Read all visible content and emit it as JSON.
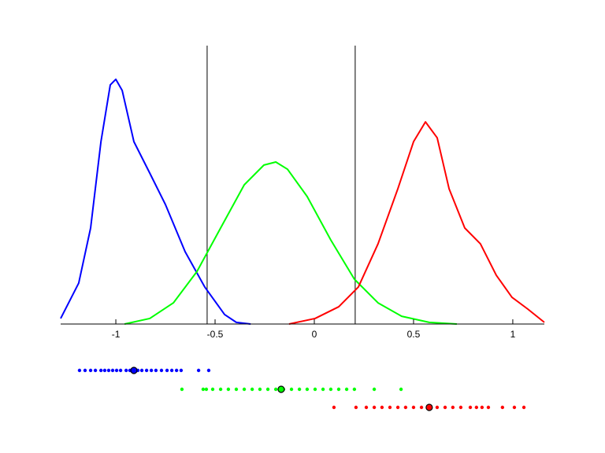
{
  "chart_data": {
    "type": "line",
    "xlim": [
      -1.278,
      1.159
    ],
    "xticks": [
      -1,
      -0.5,
      0,
      0.5,
      1
    ],
    "ylim": [
      0,
      1
    ],
    "vlines": [
      -0.54,
      0.206
    ],
    "series": [
      {
        "color": "#0000ff",
        "x": [
          -1.278,
          -1.187,
          -1.127,
          -1.075,
          -1.028,
          -1.0,
          -0.968,
          -0.909,
          -0.829,
          -0.75,
          -0.651,
          -0.552,
          -0.452,
          -0.393,
          -0.321
        ],
        "values": [
          0.02,
          0.147,
          0.345,
          0.655,
          0.859,
          0.879,
          0.839,
          0.655,
          0.542,
          0.429,
          0.26,
          0.133,
          0.034,
          0.006,
          0.0
        ]
      },
      {
        "color": "#00ff00",
        "x": [
          -0.956,
          -0.829,
          -0.71,
          -0.591,
          -0.472,
          -0.353,
          -0.254,
          -0.194,
          -0.135,
          -0.036,
          0.083,
          0.202,
          0.321,
          0.44,
          0.579,
          0.718
        ],
        "values": [
          0.0,
          0.02,
          0.076,
          0.189,
          0.345,
          0.5,
          0.571,
          0.582,
          0.556,
          0.458,
          0.302,
          0.161,
          0.076,
          0.028,
          0.006,
          0.0
        ]
      },
      {
        "color": "#ff0000",
        "x": [
          -0.127,
          0.004,
          0.123,
          0.222,
          0.321,
          0.421,
          0.5,
          0.56,
          0.619,
          0.679,
          0.758,
          0.837,
          0.917,
          0.996,
          1.075,
          1.159
        ],
        "values": [
          0.0,
          0.02,
          0.062,
          0.133,
          0.288,
          0.486,
          0.655,
          0.726,
          0.669,
          0.486,
          0.345,
          0.288,
          0.175,
          0.096,
          0.054,
          0.006
        ]
      }
    ],
    "strips": [
      {
        "color": "#0000ff",
        "mean": -0.909,
        "values": [
          -1.183,
          -1.155,
          -1.127,
          -1.103,
          -1.075,
          -1.056,
          -1.036,
          -1.016,
          -0.996,
          -0.976,
          -0.948,
          -0.929,
          -0.889,
          -0.869,
          -0.845,
          -0.821,
          -0.798,
          -0.77,
          -0.742,
          -0.718,
          -0.694,
          -0.671,
          -0.583,
          -0.532
        ]
      },
      {
        "color": "#00ff00",
        "mean": -0.167,
        "values": [
          -0.667,
          -0.56,
          -0.544,
          -0.512,
          -0.472,
          -0.433,
          -0.393,
          -0.353,
          -0.313,
          -0.274,
          -0.234,
          -0.194,
          -0.155,
          -0.115,
          -0.075,
          -0.036,
          0.004,
          0.044,
          0.083,
          0.123,
          0.163,
          0.202,
          0.302,
          0.437
        ]
      },
      {
        "color": "#ff0000",
        "mean": 0.579,
        "values": [
          0.099,
          0.21,
          0.262,
          0.302,
          0.341,
          0.381,
          0.421,
          0.46,
          0.5,
          0.54,
          0.619,
          0.659,
          0.698,
          0.738,
          0.786,
          0.817,
          0.845,
          0.877,
          0.948,
          1.008,
          1.056
        ]
      }
    ]
  }
}
